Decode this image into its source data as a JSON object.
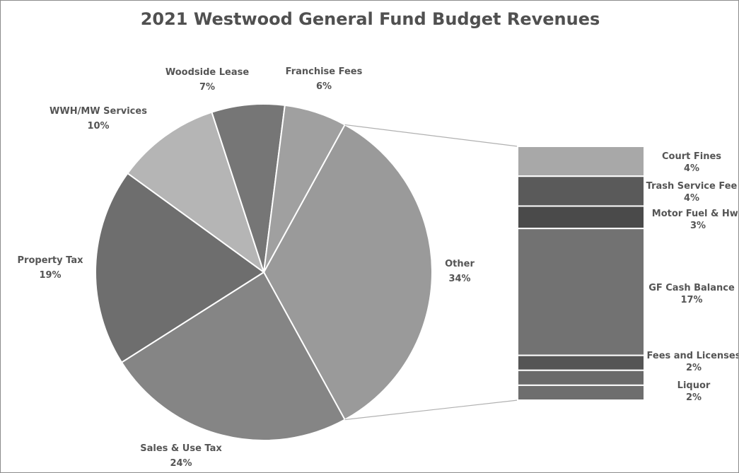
{
  "chart_data": {
    "type": "pie",
    "subtype": "pie-of-bar",
    "title": "2021 Westwood General Fund Budget Revenues",
    "slices": [
      {
        "label": "Other",
        "value": 34,
        "value_label": "34%",
        "color": "#9a9a9a"
      },
      {
        "label": "Sales & Use Tax",
        "value": 24,
        "value_label": "24%",
        "color": "#858585"
      },
      {
        "label": "Property Tax",
        "value": 19,
        "value_label": "19%",
        "color": "#6e6e6e"
      },
      {
        "label": "WWH/MW Services",
        "value": 10,
        "value_label": "10%",
        "color": "#b5b5b5"
      },
      {
        "label": "Woodside Lease",
        "value": 7,
        "value_label": "7%",
        "color": "#767676"
      },
      {
        "label": "Franchise Fees",
        "value": 6,
        "value_label": "6%",
        "color": "#a0a0a0"
      }
    ],
    "breakdown_of": "Other",
    "breakdown": [
      {
        "label": "Court Fines",
        "value": 4,
        "value_label": "4%",
        "color": "#a8a8a8"
      },
      {
        "label": "Trash Service Fee",
        "value": 4,
        "value_label": "4%",
        "color": "#5a5a5a"
      },
      {
        "label": "Motor Fuel & Hwy",
        "value": 3,
        "value_label": "3%",
        "color": "#4a4a4a"
      },
      {
        "label": "GF Cash Balance",
        "value": 17,
        "value_label": "17%",
        "color": "#727272"
      },
      {
        "label": "Fees and Licenses",
        "value": 2,
        "value_label": "2%",
        "color": "#555555"
      },
      {
        "label": "Liquor",
        "value": 2,
        "value_label": "2%",
        "color": "#6a6a6a"
      },
      {
        "label": "",
        "value": 2,
        "value_label": "",
        "color": "#6e6e6e"
      }
    ],
    "legend": "none"
  }
}
